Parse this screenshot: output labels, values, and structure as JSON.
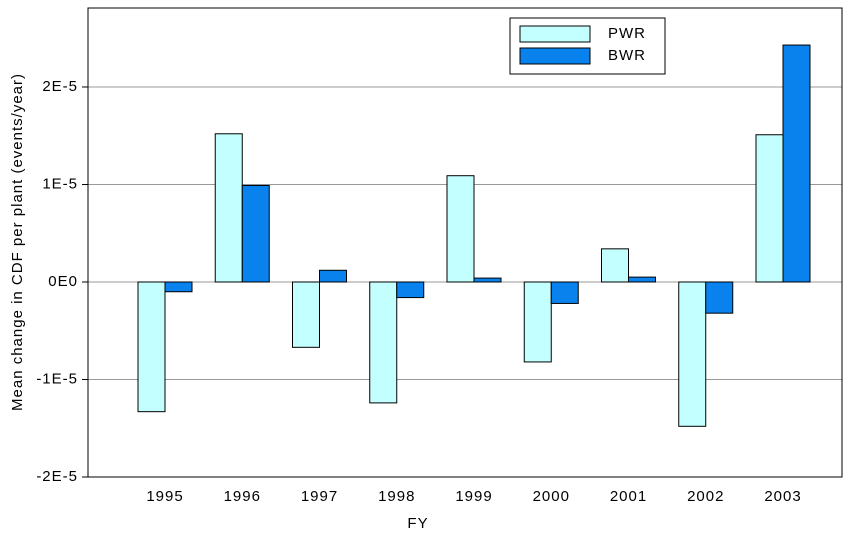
{
  "chart_data": {
    "type": "bar",
    "categories": [
      "1995",
      "1996",
      "1997",
      "1998",
      "1999",
      "2000",
      "2001",
      "2002",
      "2003"
    ],
    "series": [
      {
        "name": "PWR",
        "color": "#c4ffff",
        "values": [
          -1.33e-05,
          1.52e-05,
          -6.7e-06,
          -1.24e-05,
          1.09e-05,
          -8.2e-06,
          3.4e-06,
          -1.48e-05,
          1.51e-05
        ]
      },
      {
        "name": "BWR",
        "color": "#0a82ee",
        "values": [
          -1e-06,
          9.9e-06,
          1.2e-06,
          -1.6e-06,
          4e-07,
          -2.2e-06,
          5e-07,
          -3.2e-06,
          2.43e-05
        ]
      }
    ],
    "xlabel": "FY",
    "ylabel": "Mean change in CDF per plant (events/year)",
    "ylim": [
      -2e-05,
      2.81e-05
    ],
    "yticks": [
      {
        "value": -2e-05,
        "label": "-2E-5"
      },
      {
        "value": -1e-05,
        "label": "-1E-5"
      },
      {
        "value": 0,
        "label": "0E0"
      },
      {
        "value": 1e-05,
        "label": "1E-5"
      },
      {
        "value": 2e-05,
        "label": "2E-5"
      }
    ],
    "grid": true,
    "legend": "upper-right"
  }
}
